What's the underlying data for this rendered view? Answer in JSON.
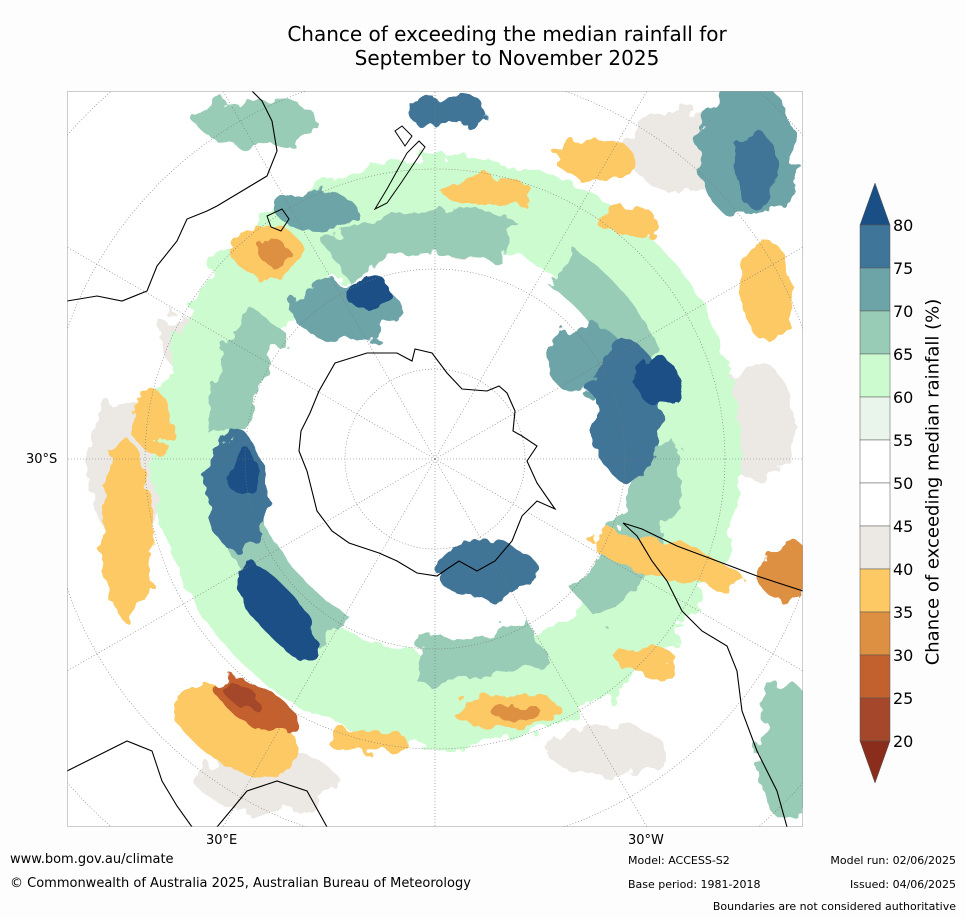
{
  "title_line1": "Chance of exceeding the median rainfall for",
  "title_line2": "September to November 2025",
  "axis_labels": {
    "lat_left": "30°S",
    "lon_left": "30°E",
    "lon_right": "30°W"
  },
  "colorbar": {
    "label": "Chance of exceeding median rainfall (%)",
    "ticks": [
      "80",
      "75",
      "70",
      "65",
      "60",
      "55",
      "50",
      "45",
      "40",
      "35",
      "30",
      "25",
      "20"
    ],
    "colors": {
      "above_80": "#1a4f86",
      "75_80": "#3f7598",
      "70_75": "#6da4a8",
      "65_70": "#98ccb6",
      "60_65": "#ccfbcf",
      "55_60": "#e9f5ea",
      "50_55": "#ffffff",
      "45_50": "#ffffff",
      "40_45": "#ece9e4",
      "35_40": "#fdc965",
      "30_35": "#dd8f42",
      "25_30": "#c3612e",
      "20_25": "#a4472a",
      "below_20": "#8b2d1c"
    }
  },
  "footer": {
    "url": "www.bom.gov.au/climate",
    "copyright": "© Commonwealth of Australia 2025, Australian Bureau of Meteorology",
    "model": "Model: ACCESS-S2",
    "base_period": "Base period: 1981-2018",
    "model_run": "Model run: 02/06/2025",
    "issued": "Issued: 04/06/2025",
    "disclaimer": "Boundaries are not considered authoritative"
  }
}
